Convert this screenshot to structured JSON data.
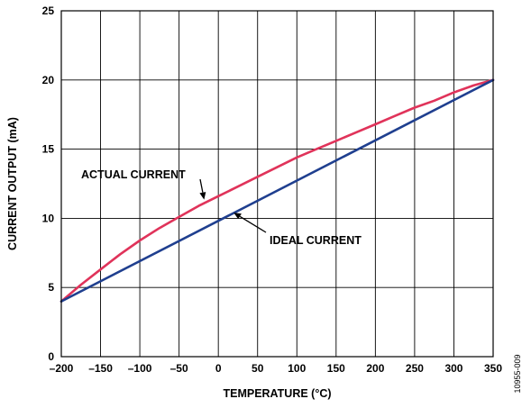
{
  "chart_data": {
    "type": "line",
    "title": "",
    "xlabel": "TEMPERATURE (°C)",
    "ylabel": "CURRENT OUTPUT (mA)",
    "xlim": [
      -200,
      350
    ],
    "ylim": [
      0,
      25
    ],
    "x_ticks": [
      -200,
      -150,
      -100,
      -50,
      0,
      50,
      100,
      150,
      200,
      250,
      300,
      350
    ],
    "x_tick_labels": [
      "–200",
      "–150",
      "–100",
      "–50",
      "0",
      "50",
      "100",
      "150",
      "200",
      "250",
      "300",
      "350"
    ],
    "y_ticks": [
      0,
      5,
      10,
      15,
      20,
      25
    ],
    "y_tick_labels": [
      "0",
      "5",
      "10",
      "15",
      "20",
      "25"
    ],
    "grid": true,
    "series": [
      {
        "name": "ACTUAL CURRENT",
        "color": "#e0335a",
        "x": [
          -200,
          -175,
          -150,
          -125,
          -100,
          -75,
          -50,
          -25,
          0,
          25,
          50,
          75,
          100,
          125,
          150,
          175,
          200,
          225,
          250,
          275,
          300,
          325,
          350
        ],
        "y": [
          4.0,
          5.2,
          6.3,
          7.4,
          8.4,
          9.3,
          10.1,
          10.9,
          11.6,
          12.3,
          13.0,
          13.7,
          14.4,
          15.0,
          15.6,
          16.2,
          16.8,
          17.4,
          18.0,
          18.5,
          19.1,
          19.6,
          20.0
        ]
      },
      {
        "name": "IDEAL CURRENT",
        "color": "#1f3f8f",
        "x": [
          -200,
          350
        ],
        "y": [
          4.0,
          20.0
        ]
      }
    ],
    "annotations": [
      {
        "text": "ACTUAL CURRENT",
        "arrow_to": [
          -25,
          10.9
        ]
      },
      {
        "text": "IDEAL CURRENT",
        "arrow_to": [
          15,
          10.8
        ]
      }
    ],
    "figure_id": "10955-009"
  }
}
